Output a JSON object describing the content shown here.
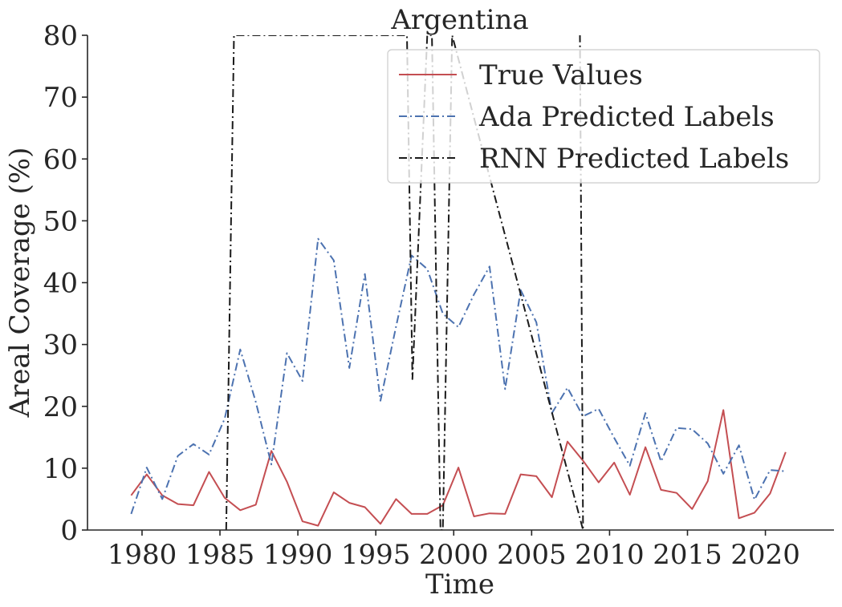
{
  "chart_data": {
    "type": "line",
    "title": "Argentina",
    "xlabel": "Time",
    "ylabel": "Areal Coverage (%)",
    "xlim": [
      1976.5,
      2024.4
    ],
    "ylim": [
      0,
      80
    ],
    "x_ticks": [
      1980,
      1985,
      1990,
      1995,
      2000,
      2005,
      2010,
      2015,
      2020
    ],
    "y_ticks": [
      0,
      10,
      20,
      30,
      40,
      50,
      60,
      70,
      80
    ],
    "grid": false,
    "legend_position": "top-right",
    "series": [
      {
        "name": "True Values",
        "color": "#c44e52",
        "dash": "solid",
        "x": [
          1979.3,
          1980.3,
          1981.3,
          1982.3,
          1983.3,
          1984.3,
          1985.3,
          1986.3,
          1987.3,
          1988.3,
          1989.3,
          1990.3,
          1991.3,
          1992.3,
          1993.3,
          1994.3,
          1995.3,
          1996.3,
          1997.3,
          1998.3,
          1999.3,
          2000.3,
          2001.3,
          2002.3,
          2003.3,
          2004.3,
          2005.3,
          2006.3,
          2007.3,
          2008.3,
          2009.3,
          2010.3,
          2011.3,
          2012.3,
          2013.3,
          2014.3,
          2015.3,
          2016.3,
          2017.3,
          2018.3,
          2019.3,
          2020.3,
          2021.3
        ],
        "y": [
          5.6,
          9.0,
          5.6,
          4.2,
          4.0,
          9.4,
          5.2,
          3.2,
          4.1,
          12.8,
          7.8,
          1.4,
          0.7,
          6.1,
          4.4,
          3.7,
          1.0,
          5.0,
          2.6,
          2.6,
          4.0,
          10.1,
          2.2,
          2.7,
          2.6,
          9.0,
          8.7,
          5.3,
          14.3,
          11.2,
          7.7,
          10.9,
          5.7,
          13.4,
          6.5,
          6.0,
          3.4,
          7.9,
          19.4,
          1.9,
          2.8,
          5.9,
          12.6
        ]
      },
      {
        "name": "Ada Predicted Labels",
        "color": "#4c72b0",
        "dash": "dashdot",
        "x": [
          1979.3,
          1980.3,
          1981.3,
          1982.3,
          1983.3,
          1984.3,
          1985.3,
          1986.3,
          1987.3,
          1988.3,
          1989.3,
          1990.3,
          1991.3,
          1992.3,
          1993.3,
          1994.3,
          1995.3,
          1996.3,
          1997.3,
          1998.3,
          1999.3,
          2000.3,
          2001.3,
          2002.3,
          2003.3,
          2004.3,
          2005.3,
          2006.3,
          2007.3,
          2008.3,
          2009.3,
          2010.3,
          2011.3,
          2012.3,
          2013.3,
          2014.3,
          2015.3,
          2016.3,
          2017.3,
          2018.3,
          2019.3,
          2020.3,
          2021.3
        ],
        "y": [
          2.6,
          10.1,
          5.0,
          12.0,
          13.9,
          12.2,
          18.0,
          29.2,
          20.7,
          10.6,
          28.6,
          24.1,
          47.1,
          43.6,
          26.2,
          41.4,
          20.9,
          32.9,
          44.4,
          42.2,
          35.0,
          32.8,
          38.1,
          42.6,
          22.8,
          38.8,
          33.6,
          18.9,
          23.0,
          18.4,
          19.6,
          14.9,
          10.4,
          18.9,
          11.1,
          16.5,
          16.3,
          14.0,
          9.1,
          13.7,
          4.9,
          9.7,
          9.5
        ]
      },
      {
        "name": "RNN Predicted Labels",
        "color": "#1a1a1a",
        "dash": "dashdot",
        "x": [
          1985.4,
          1985.9,
          1997.0,
          1997.35,
          1998.3,
          1998.6,
          1999.15,
          1999.3,
          1999.9,
          2008.3,
          2008.1
        ],
        "y": [
          0,
          80,
          80,
          24.4,
          80,
          80,
          0,
          0,
          80,
          0,
          80
        ]
      }
    ]
  }
}
